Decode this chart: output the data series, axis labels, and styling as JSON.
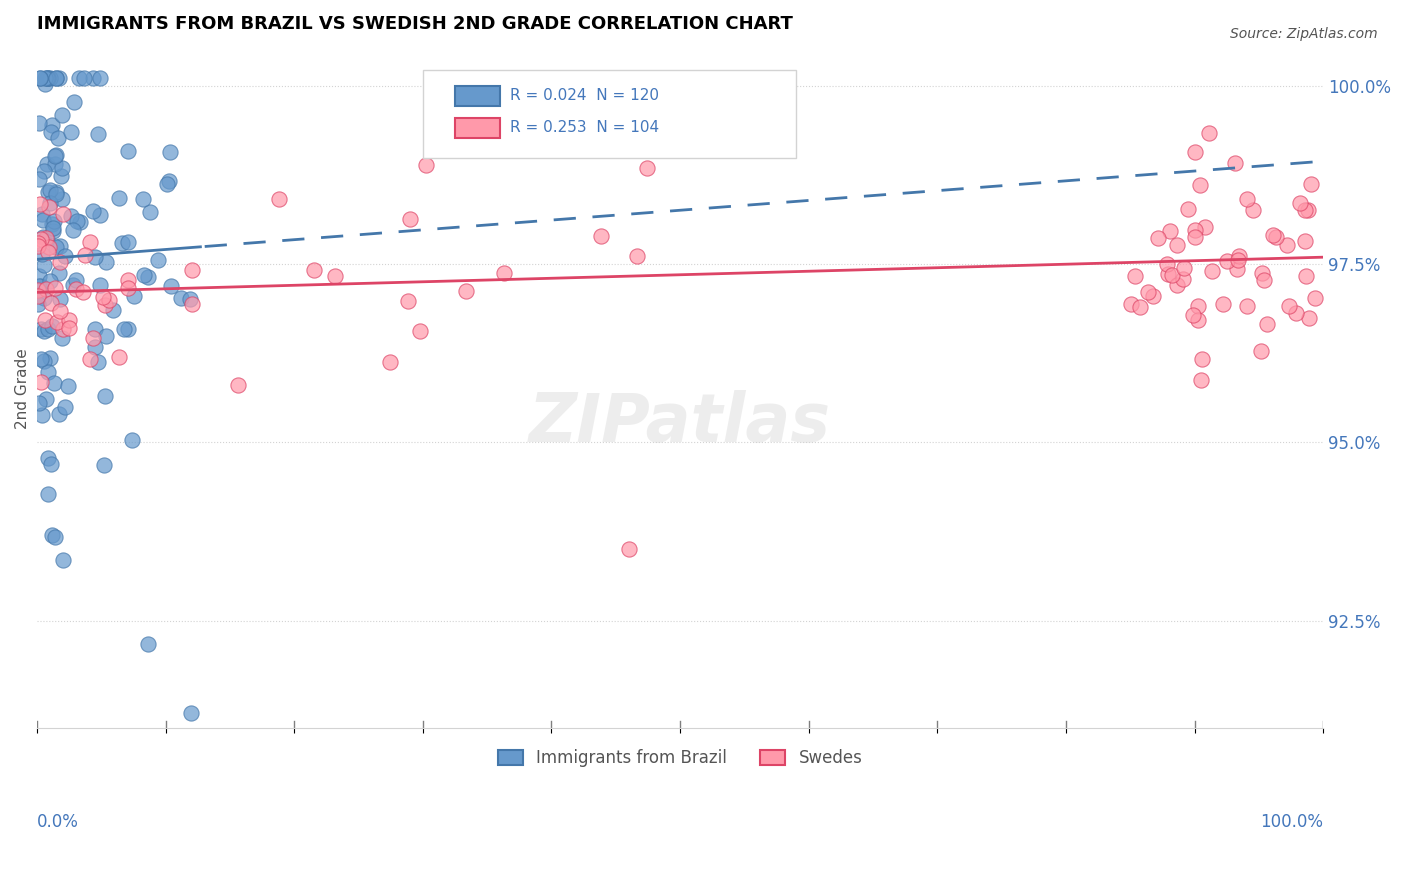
{
  "title": "IMMIGRANTS FROM BRAZIL VS SWEDISH 2ND GRADE CORRELATION CHART",
  "source": "Source: ZipAtlas.com",
  "ylabel": "2nd Grade",
  "ylabel_right_ticks": [
    "100.0%",
    "97.5%",
    "95.0%",
    "92.5%"
  ],
  "ylabel_right_vals": [
    1.0,
    0.975,
    0.95,
    0.925
  ],
  "legend_label1": "Immigrants from Brazil",
  "legend_label2": "Swedes",
  "blue_color": "#6699cc",
  "pink_color": "#ff99aa",
  "blue_color_dark": "#4477aa",
  "pink_color_dark": "#dd4466",
  "R_blue": 0.024,
  "N_blue": 120,
  "R_pink": 0.253,
  "N_pink": 104,
  "xlim": [
    0.0,
    1.0
  ],
  "ylim": [
    0.91,
    1.005
  ]
}
